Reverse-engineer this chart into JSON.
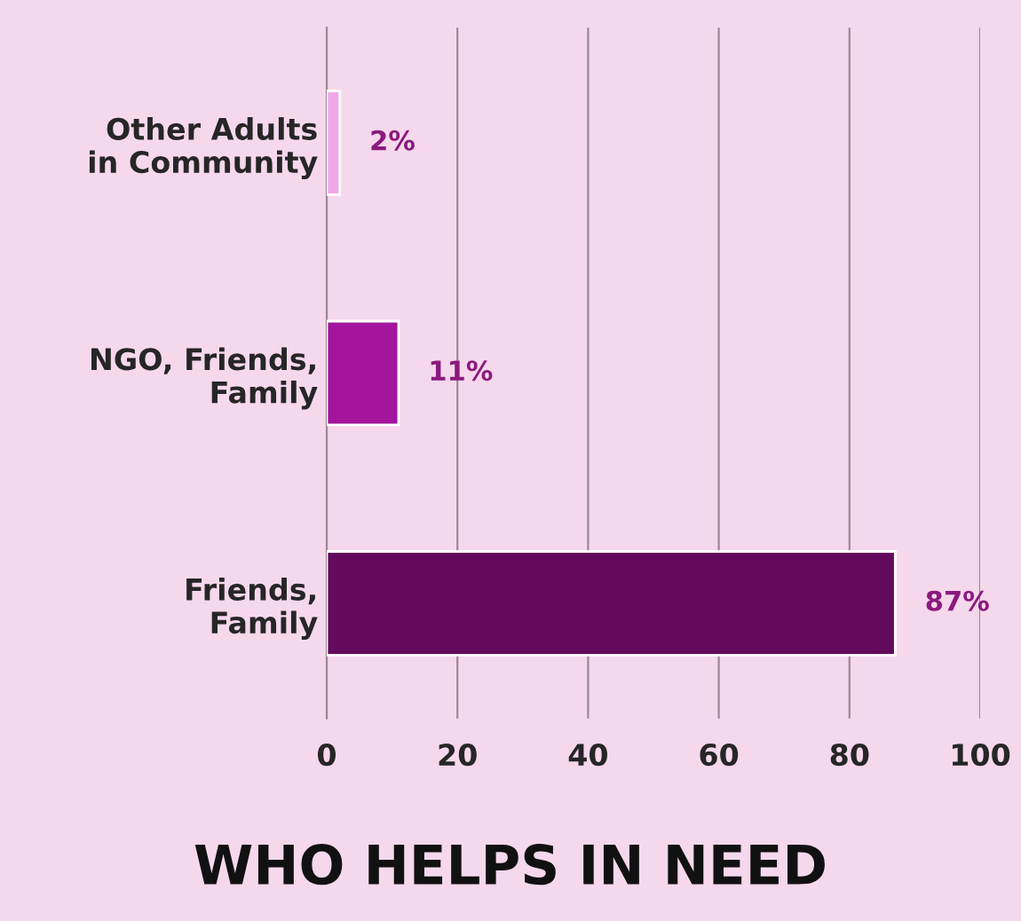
{
  "chart_data": {
    "type": "bar",
    "orientation": "horizontal",
    "title": "WHO HELPS IN NEED",
    "categories": [
      "Other Adults\nin Community",
      "NGO, Friends,\nFamily",
      "Friends,\nFamily"
    ],
    "values": [
      2,
      11,
      87
    ],
    "colors": [
      "#f2a6ea",
      "#a3159c",
      "#640a5c"
    ],
    "value_labels": [
      "2%",
      "11%",
      "87%"
    ],
    "xlim": [
      0,
      100
    ],
    "xticks": [
      0,
      20,
      40,
      60,
      80,
      100
    ],
    "grid": "x"
  }
}
